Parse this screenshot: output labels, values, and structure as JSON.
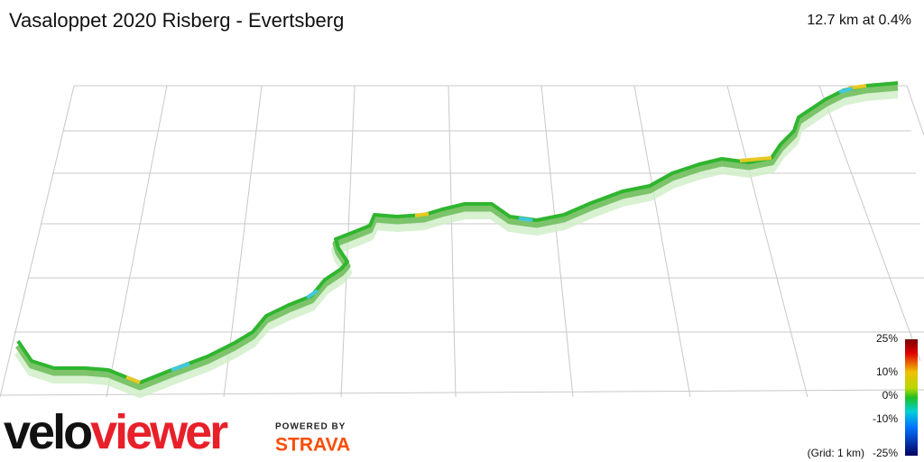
{
  "header": {
    "title": "Vasaloppet 2020 Risberg - Evertsberg",
    "stats": "12.7 km at 0.4%"
  },
  "legend": {
    "labels": [
      "25%",
      "10%",
      "0%",
      "-10%",
      "-25%"
    ],
    "grid_note": "(Grid: 1 km)"
  },
  "branding": {
    "logo_dark": "velo",
    "logo_red": "viewer",
    "powered_by": "POWERED BY",
    "partner": "STRAVA"
  }
}
